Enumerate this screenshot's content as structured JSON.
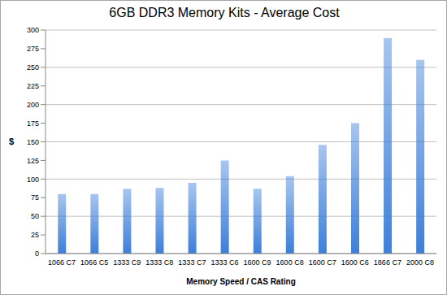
{
  "chart_data": {
    "type": "bar",
    "title": "6GB DDR3 Memory Kits - Average Cost",
    "x_label": "Memory Speed / CAS Rating",
    "y_label": "$",
    "categories": [
      "1066 C7",
      "1066 C5",
      "1333 C9",
      "1333 C8",
      "1333 C7",
      "1333 C6",
      "1600 C9",
      "1600 C8",
      "1600 C7",
      "1600 C6",
      "1866 C7",
      "2000 C8"
    ],
    "values": [
      80,
      80,
      87,
      88,
      95,
      125,
      87,
      104,
      146,
      175,
      289,
      260
    ],
    "color": "#3d7fd9",
    "ylim": [
      0,
      300
    ],
    "yticks": [
      0,
      25,
      50,
      75,
      100,
      125,
      150,
      175,
      200,
      225,
      250,
      275,
      300
    ],
    "grid": true
  }
}
